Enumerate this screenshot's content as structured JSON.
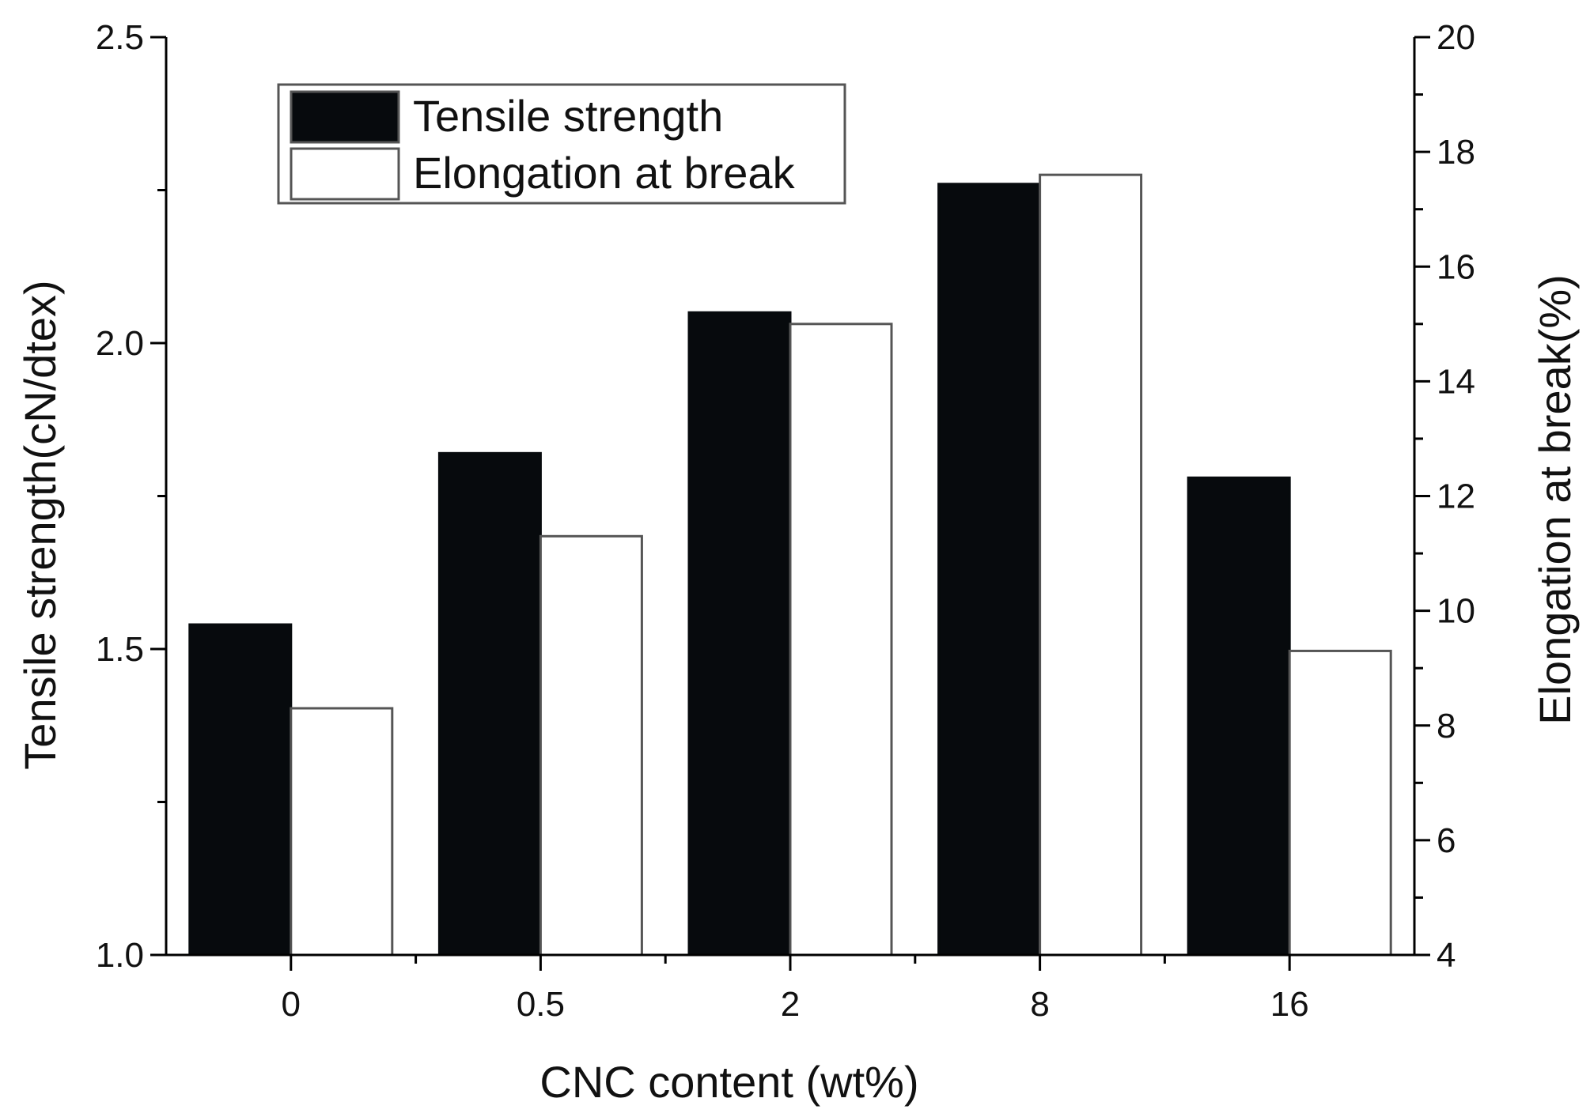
{
  "chart_data": {
    "type": "bar",
    "title": "",
    "xlabel": "CNC content (wt%)",
    "categories": [
      "0",
      "0.5",
      "2",
      "8",
      "16"
    ],
    "y_left": {
      "label": "Tensile strength(cN/dtex)",
      "ylim": [
        1.0,
        2.5
      ],
      "ticks": [
        "1.0",
        "1.5",
        "2.0",
        "2.5"
      ]
    },
    "y_right": {
      "label": "Elongation at break(%)",
      "ylim": [
        4,
        20
      ],
      "ticks": [
        "4",
        "6",
        "8",
        "10",
        "12",
        "14",
        "16",
        "18",
        "20"
      ]
    },
    "series": [
      {
        "name": "Tensile strength",
        "axis": "left",
        "color": "#070a0d",
        "values": [
          1.54,
          1.82,
          2.05,
          2.26,
          1.78
        ]
      },
      {
        "name": "Elongation at break",
        "axis": "right",
        "color": "#ffffff",
        "values": [
          8.3,
          11.3,
          15.0,
          17.6,
          9.3
        ]
      }
    ],
    "legend": "top-left",
    "grid": false
  }
}
